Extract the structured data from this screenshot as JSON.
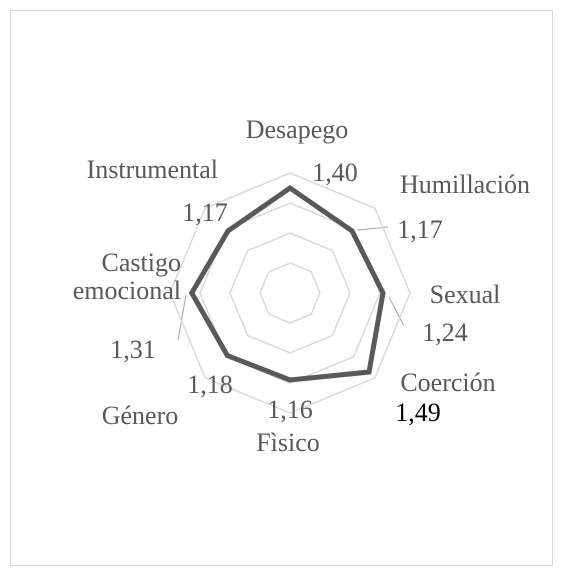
{
  "chart_data": {
    "type": "radar",
    "categories": [
      "Desapego",
      "Humillación",
      "Sexual",
      "Coerción",
      "Fìsico",
      "Género",
      "Castigo emocional",
      "Instrumental"
    ],
    "values": [
      1.4,
      1.17,
      1.24,
      1.49,
      1.16,
      1.18,
      1.31,
      1.17
    ],
    "value_labels": [
      "1,40",
      "1,17",
      "1,24",
      "1,49",
      "1,16",
      "1,18",
      "1,31",
      "1,17"
    ],
    "color": "#595959",
    "ylim": [
      0,
      1.6
    ],
    "yticks": [
      0,
      0.4,
      0.8,
      1.2,
      1.6
    ],
    "grid": true
  }
}
